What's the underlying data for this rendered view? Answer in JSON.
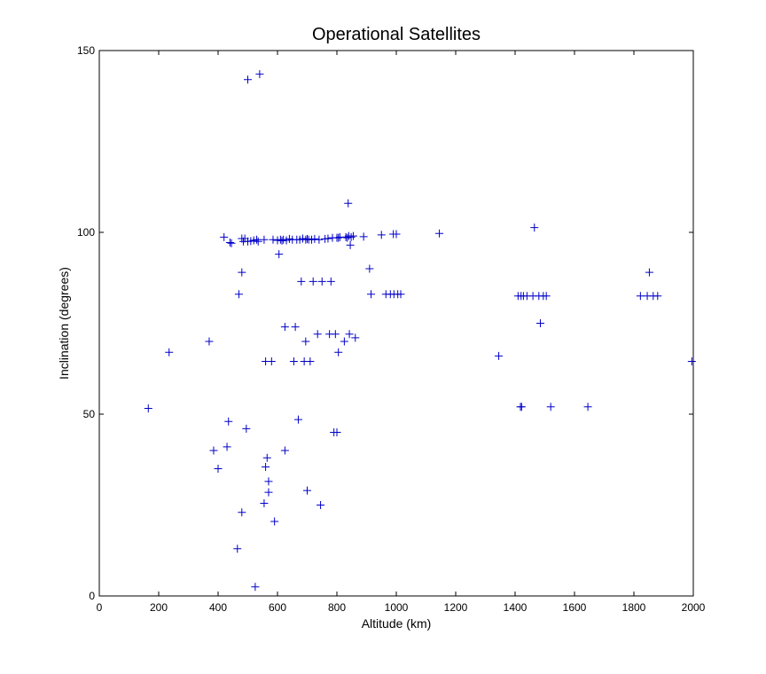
{
  "chart_data": {
    "type": "scatter",
    "title": "Operational Satellites",
    "xlabel": "Altitude (km)",
    "ylabel": "Inclination (degrees)",
    "xlim": [
      0,
      2000
    ],
    "ylim": [
      0,
      150
    ],
    "xticks": [
      0,
      200,
      400,
      600,
      800,
      1000,
      1200,
      1400,
      1600,
      1800,
      2000
    ],
    "yticks": [
      0,
      50,
      100,
      150
    ],
    "grid": false,
    "legend": "none",
    "marker": "plus",
    "marker_color": "#0000c8",
    "series": [
      {
        "points": [
          [
            165,
            51.6
          ],
          [
            235,
            67
          ],
          [
            370,
            70
          ],
          [
            385,
            40
          ],
          [
            400,
            35
          ],
          [
            420,
            98.7
          ],
          [
            430,
            41
          ],
          [
            435,
            48
          ],
          [
            440,
            97.2
          ],
          [
            445,
            97
          ],
          [
            465,
            13
          ],
          [
            470,
            83
          ],
          [
            480,
            98.3
          ],
          [
            480,
            89
          ],
          [
            480,
            23
          ],
          [
            485,
            97.5
          ],
          [
            490,
            98.3
          ],
          [
            495,
            46
          ],
          [
            500,
            97.5
          ],
          [
            500,
            142
          ],
          [
            510,
            97.6
          ],
          [
            520,
            97.8
          ],
          [
            525,
            2.5
          ],
          [
            530,
            98
          ],
          [
            535,
            97.5
          ],
          [
            540,
            143.5
          ],
          [
            555,
            25.5
          ],
          [
            555,
            98
          ],
          [
            560,
            35.5
          ],
          [
            560,
            64.5
          ],
          [
            565,
            38
          ],
          [
            570,
            31.5
          ],
          [
            570,
            28.5
          ],
          [
            580,
            64.5
          ],
          [
            585,
            98
          ],
          [
            590,
            20.5
          ],
          [
            600,
            97.8
          ],
          [
            605,
            94
          ],
          [
            610,
            98
          ],
          [
            615,
            97.7
          ],
          [
            620,
            98
          ],
          [
            625,
            74
          ],
          [
            625,
            40
          ],
          [
            630,
            97.8
          ],
          [
            640,
            98.2
          ],
          [
            650,
            98
          ],
          [
            655,
            64.5
          ],
          [
            660,
            74
          ],
          [
            665,
            98
          ],
          [
            670,
            48.5
          ],
          [
            675,
            98
          ],
          [
            680,
            86.5
          ],
          [
            685,
            98.3
          ],
          [
            690,
            64.5
          ],
          [
            695,
            98
          ],
          [
            695,
            70
          ],
          [
            700,
            98.2
          ],
          [
            700,
            29
          ],
          [
            705,
            98
          ],
          [
            710,
            64.5
          ],
          [
            715,
            98
          ],
          [
            720,
            86.5
          ],
          [
            725,
            98.2
          ],
          [
            735,
            72
          ],
          [
            740,
            98
          ],
          [
            745,
            25
          ],
          [
            750,
            86.5
          ],
          [
            760,
            98.2
          ],
          [
            770,
            98.3
          ],
          [
            775,
            72
          ],
          [
            780,
            86.5
          ],
          [
            785,
            98.5
          ],
          [
            790,
            45
          ],
          [
            795,
            72
          ],
          [
            800,
            45
          ],
          [
            800,
            98.5
          ],
          [
            805,
            67
          ],
          [
            805,
            98.5
          ],
          [
            810,
            98.7
          ],
          [
            825,
            70
          ],
          [
            830,
            98.7
          ],
          [
            835,
            98.5
          ],
          [
            838,
            108
          ],
          [
            840,
            99
          ],
          [
            842,
            72
          ],
          [
            845,
            96.5
          ],
          [
            848,
            98.7
          ],
          [
            855,
            99
          ],
          [
            862,
            71
          ],
          [
            890,
            98.8
          ],
          [
            910,
            90
          ],
          [
            915,
            83
          ],
          [
            950,
            99.3
          ],
          [
            965,
            83
          ],
          [
            980,
            83
          ],
          [
            990,
            99.5
          ],
          [
            992,
            83
          ],
          [
            1000,
            99.5
          ],
          [
            1005,
            83
          ],
          [
            1015,
            83
          ],
          [
            1145,
            99.7
          ],
          [
            1345,
            66
          ],
          [
            1410,
            82.5
          ],
          [
            1418,
            52
          ],
          [
            1420,
            82.5
          ],
          [
            1422,
            52
          ],
          [
            1428,
            82.5
          ],
          [
            1440,
            82.5
          ],
          [
            1460,
            82.5
          ],
          [
            1465,
            101.3
          ],
          [
            1480,
            82.5
          ],
          [
            1485,
            75
          ],
          [
            1495,
            82.5
          ],
          [
            1505,
            82.5
          ],
          [
            1520,
            52
          ],
          [
            1645,
            52
          ],
          [
            1822,
            82.5
          ],
          [
            1845,
            82.5
          ],
          [
            1852,
            89
          ],
          [
            1865,
            82.5
          ],
          [
            1880,
            82.5
          ],
          [
            1995,
            64.5
          ]
        ]
      }
    ]
  }
}
